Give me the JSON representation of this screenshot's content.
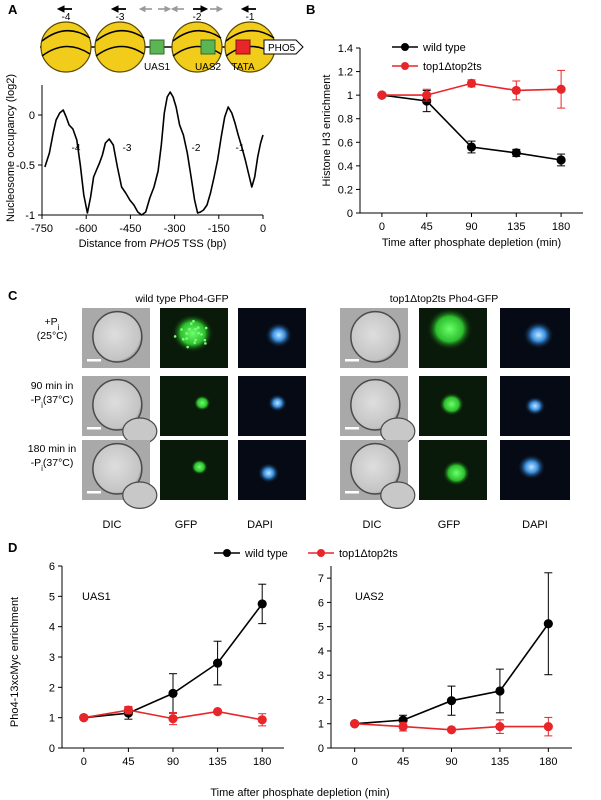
{
  "panel_labels": {
    "a": "A",
    "b": "B",
    "c": "C",
    "d": "D"
  },
  "panel_a": {
    "gene_label": "PHO5",
    "nucleosomes": [
      "-4",
      "-3",
      "-2",
      "-1"
    ],
    "sites": {
      "uas1": "UAS1",
      "uas2": "UAS2",
      "tata": "TATA"
    },
    "colors": {
      "nucleosome": "#f2cc1a",
      "uas": "#5ab552",
      "tata": "#e8262a",
      "arrow_black": "#000000",
      "arrow_grey": "#9a9a9a"
    },
    "profile_labels": [
      "-4",
      "-3",
      "-2",
      "-1"
    ]
  },
  "panel_c": {
    "wt_title": "wild type Pho4-GFP",
    "mut_title": "top1Δtop2ts Pho4-GFP",
    "conditions": [
      {
        "line1": "+P",
        "sub": "i",
        "line2": "(25°C)"
      },
      {
        "line1": "90 min in",
        "pre": "-P",
        "sub": "i",
        "line2": "(37°C)"
      },
      {
        "line1": "180 min in",
        "pre": "-P",
        "sub": "i",
        "line2": "(37°C)"
      }
    ],
    "columns": [
      "DIC",
      "GFP",
      "DAPI"
    ]
  },
  "panel_d": {
    "legend": [
      "wild type",
      "top1Δtop2ts"
    ],
    "ylabel": "Pho4-13xcMyc enrichment",
    "xlabel": "Time after phosphate depletion (min)"
  },
  "chart_data": [
    {
      "id": "A",
      "type": "line",
      "xlabel": "Distance from PHO5 TSS (bp)",
      "ylabel": "Nucleosome occupancy (log2)",
      "xlim": [
        -750,
        0
      ],
      "ylim": [
        -1,
        0.3
      ],
      "xticks": [
        -750,
        -600,
        -450,
        -300,
        -150,
        0
      ],
      "yticks": [
        0,
        -0.5,
        -1
      ],
      "tick_labels_x": [
        "-750",
        "-600",
        "-450",
        "-300",
        "-150",
        "0"
      ],
      "tick_labels_y": [
        "0",
        "-0.5",
        "-1"
      ],
      "series": [
        {
          "values": [
            [
              -740,
              -0.52
            ],
            [
              -725,
              -0.38
            ],
            [
              -712,
              -0.18
            ],
            [
              -702,
              -0.05
            ],
            [
              -690,
              0.02
            ],
            [
              -678,
              0.05
            ],
            [
              -668,
              -0.02
            ],
            [
              -658,
              -0.1
            ],
            [
              -645,
              -0.14
            ],
            [
              -632,
              -0.25
            ],
            [
              -620,
              -0.5
            ],
            [
              -608,
              -0.8
            ],
            [
              -596,
              -0.98
            ],
            [
              -585,
              -0.82
            ],
            [
              -575,
              -0.62
            ],
            [
              -565,
              -0.55
            ],
            [
              -555,
              -0.48
            ],
            [
              -545,
              -0.4
            ],
            [
              -535,
              -0.28
            ],
            [
              -522,
              -0.24
            ],
            [
              -508,
              -0.3
            ],
            [
              -494,
              -0.52
            ],
            [
              -480,
              -0.72
            ],
            [
              -466,
              -0.78
            ],
            [
              -452,
              -0.85
            ],
            [
              -438,
              -0.9
            ],
            [
              -425,
              -0.97
            ],
            [
              -412,
              -1.0
            ],
            [
              -398,
              -0.97
            ],
            [
              -384,
              -0.83
            ],
            [
              -370,
              -0.72
            ],
            [
              -356,
              -0.56
            ],
            [
              -345,
              -0.3
            ],
            [
              -335,
              0.02
            ],
            [
              -325,
              0.18
            ],
            [
              -315,
              0.23
            ],
            [
              -305,
              0.18
            ],
            [
              -295,
              0.08
            ],
            [
              -283,
              -0.1
            ],
            [
              -270,
              -0.2
            ],
            [
              -257,
              -0.38
            ],
            [
              -244,
              -0.62
            ],
            [
              -232,
              -0.85
            ],
            [
              -222,
              -0.98
            ],
            [
              -212,
              -0.97
            ],
            [
              -202,
              -0.95
            ],
            [
              -190,
              -0.9
            ],
            [
              -178,
              -0.78
            ],
            [
              -166,
              -0.62
            ],
            [
              -154,
              -0.45
            ],
            [
              -142,
              -0.22
            ],
            [
              -130,
              -0.02
            ],
            [
              -118,
              0.08
            ],
            [
              -106,
              0.02
            ],
            [
              -95,
              -0.08
            ],
            [
              -84,
              -0.2
            ],
            [
              -72,
              -0.32
            ],
            [
              -60,
              -0.45
            ],
            [
              -48,
              -0.6
            ],
            [
              -38,
              -0.72
            ],
            [
              -28,
              -0.62
            ],
            [
              -18,
              -0.42
            ],
            [
              -8,
              -0.28
            ],
            [
              0,
              -0.2
            ]
          ]
        }
      ]
    },
    {
      "id": "B",
      "type": "line",
      "xlabel": "Time after phosphate depletion (min)",
      "ylabel": "Histone H3 enrichment",
      "x": [
        0,
        45,
        90,
        135,
        180
      ],
      "xlim": [
        -22,
        202
      ],
      "ylim": [
        0,
        1.4
      ],
      "yticks": [
        0,
        0.2,
        0.4,
        0.6,
        0.8,
        1,
        1.2,
        1.4
      ],
      "tick_labels_y": [
        "0",
        "0.2",
        "0.4",
        "0.6",
        "0.8",
        "1",
        "1.2",
        "1.4"
      ],
      "legend_position": "top-left",
      "series": [
        {
          "name": "wild type",
          "color": "#000000",
          "values": [
            1.0,
            0.95,
            0.56,
            0.51,
            0.45
          ],
          "errors": [
            0.0,
            0.09,
            0.05,
            0.03,
            0.05
          ]
        },
        {
          "name": "top1Δtop2ts",
          "color": "#e8262a",
          "values": [
            1.0,
            1.0,
            1.1,
            1.04,
            1.05
          ],
          "errors": [
            0.0,
            0.05,
            0.03,
            0.08,
            0.16
          ]
        }
      ]
    },
    {
      "id": "D-UAS1",
      "type": "line",
      "title": "UAS1",
      "x": [
        0,
        45,
        90,
        135,
        180
      ],
      "xlim": [
        -22,
        202
      ],
      "ylim": [
        0,
        6
      ],
      "yticks": [
        0,
        1,
        2,
        3,
        4,
        5,
        6
      ],
      "tick_labels_y": [
        "0",
        "1",
        "2",
        "3",
        "4",
        "5",
        "6"
      ],
      "series": [
        {
          "name": "wild type",
          "color": "#000000",
          "values": [
            1.0,
            1.15,
            1.8,
            2.8,
            4.75
          ],
          "errors": [
            0.0,
            0.2,
            0.65,
            0.72,
            0.65
          ]
        },
        {
          "name": "top1Δtop2ts",
          "color": "#e8262a",
          "values": [
            1.0,
            1.25,
            0.97,
            1.2,
            0.93
          ],
          "errors": [
            0.0,
            0.12,
            0.2,
            0.05,
            0.2
          ]
        }
      ]
    },
    {
      "id": "D-UAS2",
      "type": "line",
      "title": "UAS2",
      "x": [
        0,
        45,
        90,
        135,
        180
      ],
      "xlim": [
        -22,
        202
      ],
      "ylim": [
        0,
        7.5
      ],
      "yticks": [
        0,
        1,
        2,
        3,
        4,
        5,
        6,
        7
      ],
      "tick_labels_y": [
        "0",
        "1",
        "2",
        "3",
        "4",
        "5",
        "6",
        "7"
      ],
      "series": [
        {
          "name": "wild type",
          "color": "#000000",
          "values": [
            1.0,
            1.15,
            1.95,
            2.35,
            5.12
          ],
          "errors": [
            0.0,
            0.2,
            0.6,
            0.9,
            2.1
          ]
        },
        {
          "name": "top1Δtop2ts",
          "color": "#e8262a",
          "values": [
            1.0,
            0.88,
            0.75,
            0.88,
            0.88
          ],
          "errors": [
            0.0,
            0.18,
            0.08,
            0.28,
            0.38
          ]
        }
      ]
    }
  ]
}
